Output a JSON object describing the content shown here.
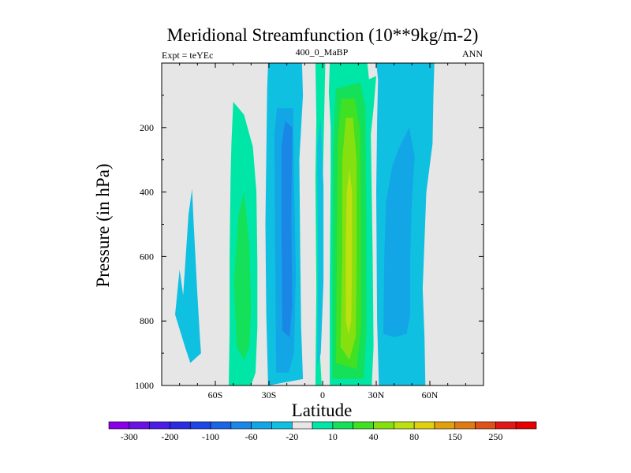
{
  "chart_data": {
    "type": "contour",
    "title": "Meridional Streamfunction (10**9kg/m-2)",
    "left_string": "Expt = teYEc",
    "center_string": "400_0_MaBP",
    "right_string": "ANN",
    "xlabel": "Latitude",
    "ylabel": "Pressure (in hPa)",
    "xlim": [
      -90,
      90
    ],
    "ylim": [
      1000,
      0
    ],
    "x_ticks": [
      {
        "value": -60,
        "label": "60S"
      },
      {
        "value": -30,
        "label": "30S"
      },
      {
        "value": 0,
        "label": "0"
      },
      {
        "value": 30,
        "label": "30N"
      },
      {
        "value": 60,
        "label": "60N"
      }
    ],
    "y_ticks": [
      {
        "value": 200,
        "label": "200"
      },
      {
        "value": 400,
        "label": "400"
      },
      {
        "value": 600,
        "label": "600"
      },
      {
        "value": 800,
        "label": "800"
      },
      {
        "value": 1000,
        "label": "1000"
      }
    ],
    "missing_color": "#e6e6e6",
    "levels": [
      -300,
      -250,
      -200,
      -150,
      -100,
      -80,
      -60,
      -40,
      -20,
      -10,
      10,
      20,
      40,
      60,
      80,
      100,
      150,
      200,
      250,
      300
    ],
    "colorbar_labels": [
      {
        "level_index": 0,
        "label": "-300"
      },
      {
        "level_index": 2,
        "label": "-200"
      },
      {
        "level_index": 4,
        "label": "-100"
      },
      {
        "level_index": 6,
        "label": "-60"
      },
      {
        "level_index": 8,
        "label": "-20"
      },
      {
        "level_index": 10,
        "label": "10"
      },
      {
        "level_index": 12,
        "label": "40"
      },
      {
        "level_index": 14,
        "label": "80"
      },
      {
        "level_index": 16,
        "label": "150"
      },
      {
        "level_index": 18,
        "label": "250"
      }
    ],
    "colors": [
      "#8a00e6",
      "#6a12e6",
      "#4a1ee6",
      "#2a2ce0",
      "#1e46e6",
      "#1a64e6",
      "#1a86e6",
      "#12a6e6",
      "#10c0e0",
      "#e6e6e6",
      "#00e6a6",
      "#14e05a",
      "#40e022",
      "#86e010",
      "#bce010",
      "#e0d010",
      "#e0a010",
      "#e07a14",
      "#e05018",
      "#e01818",
      "#e60000"
    ],
    "regions": [
      {
        "level": 8,
        "points": [
          [
            -82.5,
            780
          ],
          [
            -80.0,
            640
          ],
          [
            -78.0,
            720
          ],
          [
            -75.0,
            470
          ],
          [
            -73.0,
            390
          ],
          [
            -72.0,
            510
          ],
          [
            -70.0,
            720
          ],
          [
            -68.5,
            860
          ],
          [
            -68.0,
            900
          ],
          [
            -71.0,
            915
          ],
          [
            -74.0,
            930
          ],
          [
            -77.0,
            880
          ]
        ]
      },
      {
        "level": 10,
        "points": [
          [
            -52.5,
            1000
          ],
          [
            -52.0,
            830
          ],
          [
            -52.0,
            600
          ],
          [
            -51.5,
            360
          ],
          [
            -51.0,
            250
          ],
          [
            -50.0,
            120
          ],
          [
            -44.0,
            160
          ],
          [
            -39.0,
            260
          ],
          [
            -37.0,
            400
          ],
          [
            -36.5,
            620
          ],
          [
            -36.5,
            820
          ],
          [
            -37.5,
            960
          ],
          [
            -40.0,
            1000
          ]
        ]
      },
      {
        "level": 11,
        "points": [
          [
            -48.0,
            880
          ],
          [
            -49.5,
            680
          ],
          [
            -47.0,
            470
          ],
          [
            -44.0,
            400
          ],
          [
            -41.0,
            560
          ],
          [
            -40.0,
            760
          ],
          [
            -41.0,
            880
          ],
          [
            -44.0,
            920
          ]
        ]
      },
      {
        "level": 8,
        "points": [
          [
            -30.5,
            1000
          ],
          [
            -31.5,
            780
          ],
          [
            -32.0,
            500
          ],
          [
            -31.0,
            80
          ],
          [
            -30.5,
            0
          ],
          [
            -11.5,
            0
          ],
          [
            -11.0,
            100
          ],
          [
            -13.0,
            300
          ],
          [
            -12.5,
            600
          ],
          [
            -12.0,
            820
          ],
          [
            -11.0,
            980
          ]
        ]
      },
      {
        "level": 7,
        "points": [
          [
            -26.0,
            960
          ],
          [
            -26.5,
            600
          ],
          [
            -27.0,
            220
          ],
          [
            -25.5,
            140
          ],
          [
            -16.5,
            140
          ],
          [
            -16.0,
            350
          ],
          [
            -15.0,
            650
          ],
          [
            -16.0,
            900
          ],
          [
            -19.0,
            960
          ]
        ]
      },
      {
        "level": 6,
        "points": [
          [
            -22.5,
            830
          ],
          [
            -23.0,
            500
          ],
          [
            -23.0,
            260
          ],
          [
            -21.0,
            180
          ],
          [
            -17.0,
            200
          ],
          [
            -17.5,
            480
          ],
          [
            -17.0,
            750
          ],
          [
            -18.5,
            850
          ]
        ]
      },
      {
        "level": 10,
        "points": [
          [
            -4.0,
            1000
          ],
          [
            -3.5,
            700
          ],
          [
            -4.0,
            350
          ],
          [
            -3.5,
            180
          ],
          [
            -4.0,
            0
          ],
          [
            1.5,
            0
          ],
          [
            1.0,
            130
          ],
          [
            0.0,
            400
          ],
          [
            0.0,
            700
          ],
          [
            -1.5,
            900
          ],
          [
            -0.5,
            1000
          ]
        ]
      },
      {
        "level": 8,
        "points": [
          [
            -3.0,
            940
          ],
          [
            -2.5,
            650
          ],
          [
            -3.0,
            260
          ],
          [
            -1.0,
            170
          ],
          [
            0.5,
            380
          ],
          [
            0.5,
            680
          ],
          [
            -1.0,
            900
          ]
        ]
      },
      {
        "level": 10,
        "points": [
          [
            4.0,
            1000
          ],
          [
            4.0,
            700
          ],
          [
            4.5,
            350
          ],
          [
            4.5,
            200
          ],
          [
            3.5,
            90
          ],
          [
            4.0,
            0
          ],
          [
            25.0,
            0
          ],
          [
            26.0,
            50
          ],
          [
            30.0,
            40
          ],
          [
            28.5,
            140
          ],
          [
            27.0,
            220
          ],
          [
            28.0,
            600
          ],
          [
            28.5,
            880
          ],
          [
            27.5,
            1000
          ]
        ]
      },
      {
        "level": 11,
        "points": [
          [
            5.5,
            980
          ],
          [
            5.5,
            600
          ],
          [
            6.0,
            250
          ],
          [
            7.5,
            80
          ],
          [
            21.0,
            60
          ],
          [
            24.0,
            140
          ],
          [
            24.5,
            500
          ],
          [
            24.5,
            840
          ],
          [
            23.0,
            980
          ]
        ]
      },
      {
        "level": 12,
        "points": [
          [
            7.5,
            930
          ],
          [
            8.0,
            600
          ],
          [
            8.5,
            230
          ],
          [
            10.5,
            110
          ],
          [
            18.0,
            110
          ],
          [
            21.0,
            210
          ],
          [
            21.5,
            520
          ],
          [
            21.5,
            820
          ],
          [
            19.0,
            950
          ]
        ]
      },
      {
        "level": 13,
        "points": [
          [
            10.0,
            880
          ],
          [
            11.0,
            600
          ],
          [
            11.0,
            300
          ],
          [
            13.0,
            170
          ],
          [
            17.0,
            170
          ],
          [
            19.0,
            300
          ],
          [
            19.0,
            640
          ],
          [
            18.5,
            850
          ],
          [
            15.0,
            920
          ]
        ]
      },
      {
        "level": 14,
        "points": [
          [
            13.0,
            800
          ],
          [
            13.0,
            560
          ],
          [
            13.5,
            400
          ],
          [
            15.0,
            330
          ],
          [
            16.5,
            400
          ],
          [
            16.5,
            620
          ],
          [
            16.0,
            800
          ],
          [
            14.5,
            840
          ]
        ]
      },
      {
        "level": 8,
        "points": [
          [
            31.5,
            1000
          ],
          [
            30.5,
            800
          ],
          [
            30.0,
            400
          ],
          [
            30.5,
            180
          ],
          [
            31.0,
            50
          ],
          [
            30.0,
            0
          ],
          [
            62.5,
            0
          ],
          [
            62.0,
            100
          ],
          [
            61.5,
            250
          ],
          [
            58.0,
            400
          ],
          [
            57.0,
            550
          ],
          [
            56.0,
            700
          ],
          [
            57.0,
            850
          ],
          [
            57.5,
            1000
          ]
        ]
      },
      {
        "level": 7,
        "points": [
          [
            34.0,
            840
          ],
          [
            34.5,
            600
          ],
          [
            35.5,
            430
          ],
          [
            39.0,
            320
          ],
          [
            43.0,
            260
          ],
          [
            48.5,
            200
          ],
          [
            51.5,
            290
          ],
          [
            50.0,
            420
          ],
          [
            49.0,
            600
          ],
          [
            49.0,
            780
          ],
          [
            47.0,
            840
          ],
          [
            40.0,
            850
          ]
        ]
      }
    ]
  }
}
